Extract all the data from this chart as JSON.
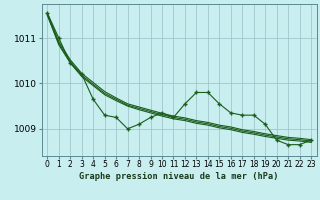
{
  "title": "Graphe pression niveau de la mer (hPa)",
  "bg_color": "#c8eef0",
  "line_color": "#1a5c1a",
  "x_values": [
    0,
    1,
    2,
    3,
    4,
    5,
    6,
    7,
    8,
    9,
    10,
    11,
    12,
    13,
    14,
    15,
    16,
    17,
    18,
    19,
    20,
    21,
    22,
    23
  ],
  "series_jagged": [
    1011.55,
    1011.0,
    1010.45,
    1010.2,
    1009.65,
    1009.3,
    1009.25,
    1009.0,
    1009.1,
    1009.25,
    1009.35,
    1009.25,
    1009.55,
    1009.8,
    1009.8,
    1009.55,
    1009.35,
    1009.3,
    1009.3,
    1009.1,
    1008.75,
    1008.65,
    1008.65,
    1008.75
  ],
  "series_s1": [
    1011.5,
    1010.85,
    1010.45,
    1010.15,
    1009.95,
    1009.75,
    1009.62,
    1009.5,
    1009.42,
    1009.35,
    1009.28,
    1009.22,
    1009.18,
    1009.12,
    1009.08,
    1009.02,
    1008.98,
    1008.92,
    1008.88,
    1008.83,
    1008.79,
    1008.75,
    1008.73,
    1008.7
  ],
  "series_s2": [
    1011.52,
    1010.88,
    1010.48,
    1010.18,
    1009.98,
    1009.78,
    1009.65,
    1009.52,
    1009.45,
    1009.38,
    1009.31,
    1009.25,
    1009.21,
    1009.15,
    1009.11,
    1009.05,
    1009.01,
    1008.95,
    1008.91,
    1008.86,
    1008.82,
    1008.78,
    1008.76,
    1008.73
  ],
  "series_s3": [
    1011.55,
    1010.92,
    1010.52,
    1010.22,
    1010.02,
    1009.82,
    1009.68,
    1009.55,
    1009.48,
    1009.41,
    1009.34,
    1009.28,
    1009.24,
    1009.18,
    1009.14,
    1009.08,
    1009.04,
    1008.98,
    1008.94,
    1008.89,
    1008.85,
    1008.81,
    1008.79,
    1008.76
  ],
  "ylim": [
    1008.4,
    1011.75
  ],
  "yticks": [
    1009,
    1010,
    1011
  ],
  "xlim": [
    -0.5,
    23.5
  ],
  "xticks": [
    0,
    1,
    2,
    3,
    4,
    5,
    6,
    7,
    8,
    9,
    10,
    11,
    12,
    13,
    14,
    15,
    16,
    17,
    18,
    19,
    20,
    21,
    22,
    23
  ],
  "tick_fontsize": 5.5,
  "ytick_fontsize": 6.5,
  "title_fontsize": 6.2
}
